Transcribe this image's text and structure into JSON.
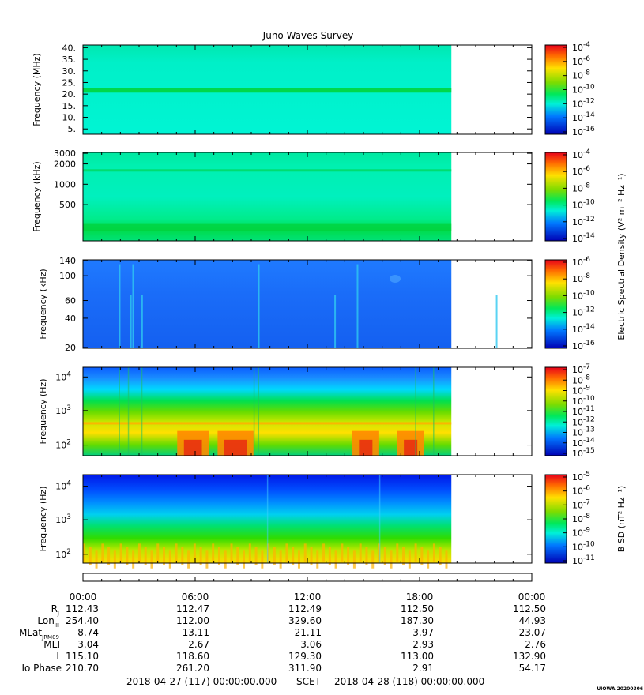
{
  "chart_data": {
    "type": "heatmap",
    "title": "Juno Waves Survey",
    "time_axis": {
      "ticks": [
        "00:00",
        "06:00",
        "12:00",
        "18:00",
        "00:00"
      ],
      "start": "2018-04-27 (117) 00:00:00.000",
      "mid_label": "SCET",
      "end": "2018-04-28 (118) 00:00:00.000",
      "data_end_hours": 19.7
    },
    "panels": [
      {
        "id": "panel1",
        "ylabel": "Frequency (MHz)",
        "y_ticks": [
          "40.",
          "35.",
          "30.",
          "25.",
          "20.",
          "15.",
          "10.",
          "5."
        ],
        "colorbar_ticks": [
          "-4",
          "-6",
          "-8",
          "-10",
          "-12",
          "-14",
          "-16"
        ],
        "colormap_note": "cyan background with green band near 21 MHz"
      },
      {
        "id": "panel2",
        "ylabel": "Frequency (kHz)",
        "y_ticks": [
          "3000",
          "2000",
          "1000",
          "500"
        ],
        "colorbar_ticks": [
          "-4",
          "-6",
          "-8",
          "-10",
          "-12",
          "-14"
        ],
        "colormap_note": "cyan-green, green band at low frequencies"
      },
      {
        "id": "panel3",
        "ylabel": "Frequency (kHz)",
        "y_ticks": [
          "140",
          "100",
          "60",
          "40",
          "20"
        ],
        "colorbar_ticks": [
          "-6",
          "-8",
          "-10",
          "-12",
          "-14",
          "-16"
        ],
        "colormap_note": "blue with cyan vertical streaks"
      },
      {
        "id": "panel4",
        "ylabel": "Frequency (Hz)",
        "y_ticks": [
          "4",
          "3",
          "2"
        ],
        "colorbar_ticks": [
          "-7",
          "-8",
          "-9",
          "-10",
          "-11",
          "-12",
          "-13",
          "-14",
          "-15"
        ],
        "colormap_note": "blue top, green middle, yellow/red bursts at low frequencies"
      },
      {
        "id": "panel5",
        "ylabel": "Frequency (Hz)",
        "y_ticks": [
          "4",
          "3",
          "2"
        ],
        "colorbar_ticks": [
          "-5",
          "-6",
          "-7",
          "-8",
          "-9",
          "-10",
          "-11"
        ],
        "colormap_note": "blue top grading to green and yellow at bottom"
      }
    ],
    "colorbar_labels": {
      "electric": "Electric Spectral Density (V² m⁻² Hz⁻¹)",
      "magnetic": "B SD (nT² Hz⁻¹)"
    },
    "ephemeris": {
      "rows": [
        {
          "label": "R",
          "sub": "J",
          "values": [
            "112.43",
            "112.47",
            "112.49",
            "112.50",
            "112.50"
          ]
        },
        {
          "label": "Lon",
          "sub": "III",
          "values": [
            "254.40",
            "112.00",
            "329.60",
            "187.30",
            "44.93"
          ]
        },
        {
          "label": "MLat",
          "sub": "JRM09",
          "values": [
            "-8.74",
            "-13.11",
            "-21.11",
            "-3.97",
            "-23.07"
          ]
        },
        {
          "label": "MLT",
          "sub": "",
          "values": [
            "3.04",
            "2.67",
            "3.06",
            "2.93",
            "2.76"
          ]
        },
        {
          "label": "L",
          "sub": "",
          "values": [
            "115.10",
            "118.60",
            "129.30",
            "113.00",
            "132.90"
          ]
        },
        {
          "label": "Io Phase",
          "sub": "",
          "values": [
            "210.70",
            "261.20",
            "311.90",
            "2.91",
            "54.17"
          ]
        }
      ]
    },
    "stamp": "UIOWA 20200306"
  }
}
